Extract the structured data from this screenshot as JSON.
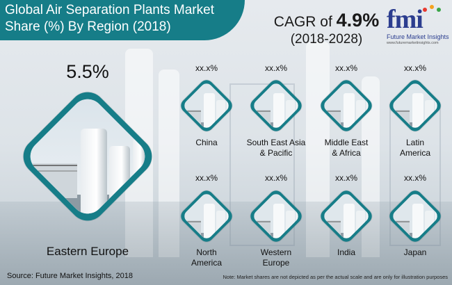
{
  "title": "Global Air Separation Plants Market Share (%) By Region (2018)",
  "cagr": {
    "prefix": "CAGR of",
    "value": "4.9%",
    "period": "(2018-2028)"
  },
  "logo": {
    "mark": "fmi",
    "name": "Future Market Insights",
    "url": "www.futuremarketinsights.com"
  },
  "featured": {
    "value": "5.5%",
    "region": "Eastern Europe"
  },
  "regions": [
    {
      "value": "xx.x%",
      "name": "China"
    },
    {
      "value": "xx.x%",
      "name": "South East Asia",
      "name2": "& Pacific"
    },
    {
      "value": "xx.x%",
      "name": "Middle East",
      "name2": "& Africa"
    },
    {
      "value": "xx.x%",
      "name": "Latin",
      "name2": "America"
    },
    {
      "value": "xx.x%",
      "name": "North",
      "name2": "America"
    },
    {
      "value": "xx.x%",
      "name": "Western",
      "name2": "Europe"
    },
    {
      "value": "xx.x%",
      "name": "India"
    },
    {
      "value": "xx.x%",
      "name": "Japan"
    }
  ],
  "source": "Source: Future Market Insights, 2018",
  "note": "Note: Market shares are not depicted as per the actual scale and are only for illustration purposes",
  "colors": {
    "teal": "#167d88",
    "logo_blue": "#2b3d8f"
  }
}
